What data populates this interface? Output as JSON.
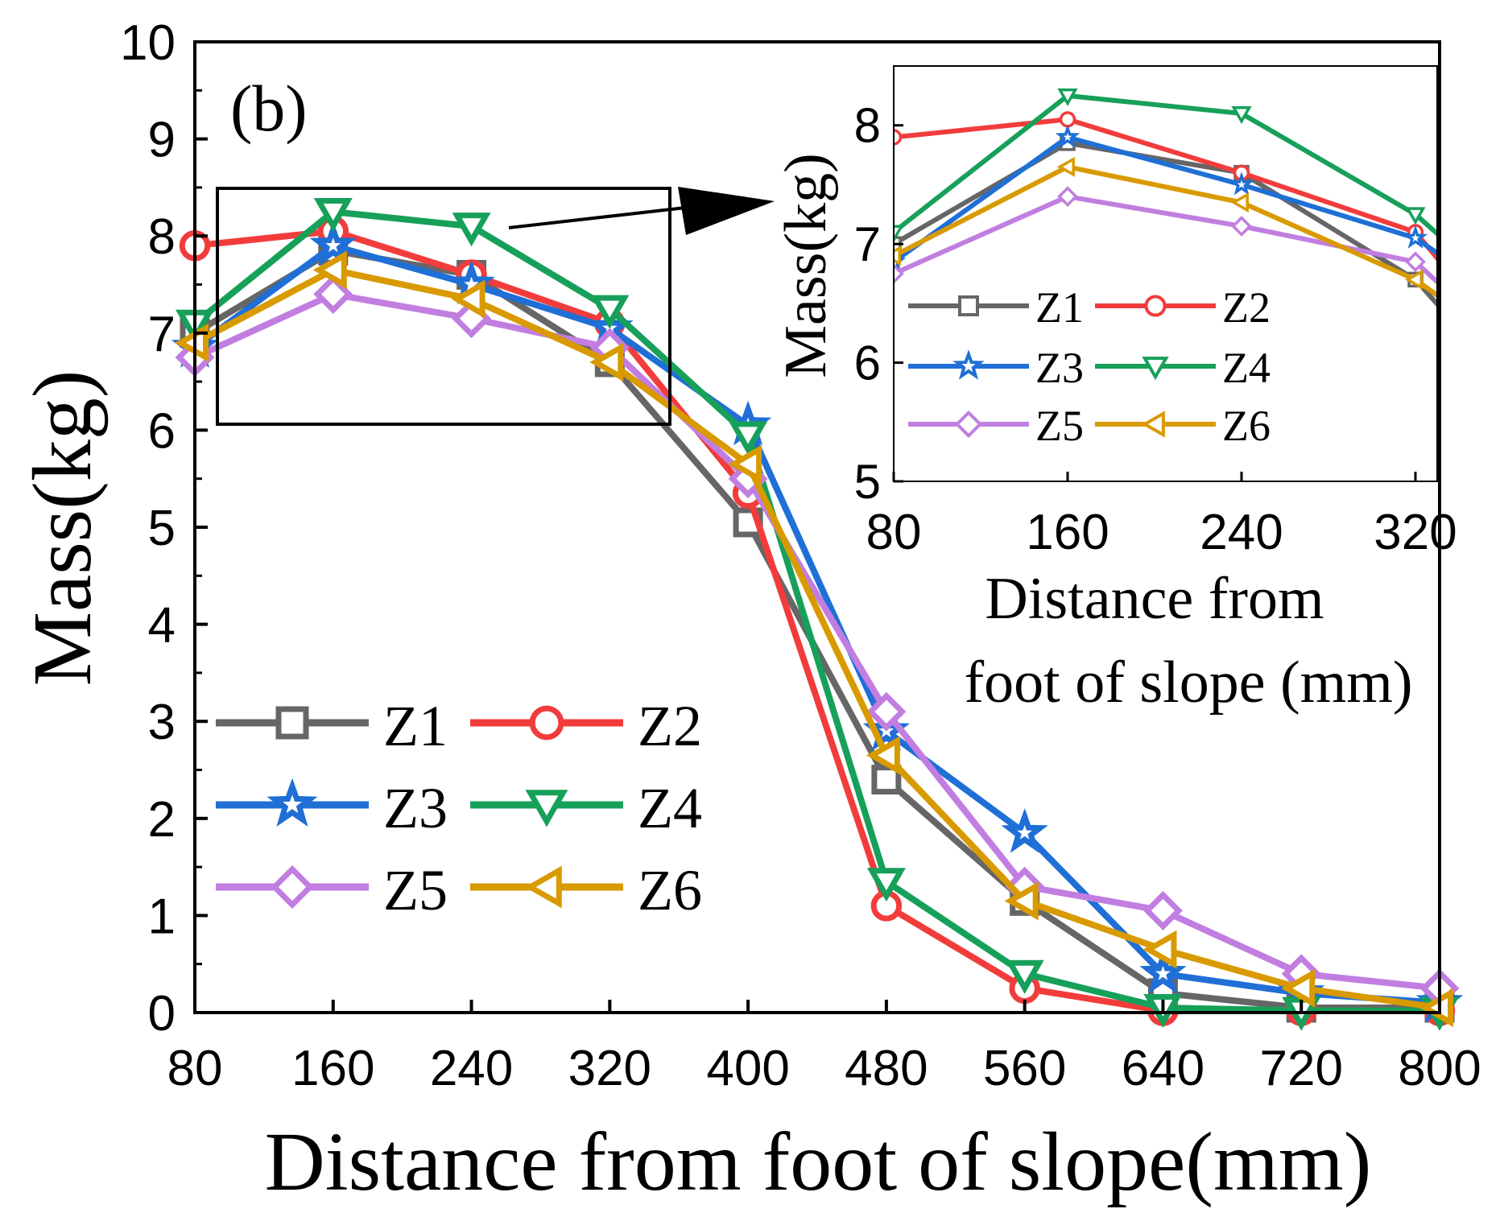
{
  "chart_data": [
    {
      "type": "line",
      "panel_label": "(b)",
      "xlabel": "Distance from foot of slope(mm)",
      "ylabel": "Mass(kg)",
      "xlim": [
        80,
        800
      ],
      "ylim": [
        0,
        10
      ],
      "xticks": [
        "80",
        "160",
        "240",
        "320",
        "400",
        "480",
        "560",
        "640",
        "720",
        "800"
      ],
      "yticks": [
        "0",
        "1",
        "2",
        "3",
        "4",
        "5",
        "6",
        "7",
        "8",
        "9",
        "10"
      ],
      "x": [
        80,
        160,
        240,
        320,
        400,
        480,
        560,
        640,
        720,
        800
      ],
      "legend_position": "center-left",
      "series": [
        {
          "name": "Z1",
          "marker": "square",
          "color": "#666666",
          "values": [
            7.0,
            7.85,
            7.6,
            6.7,
            5.05,
            2.4,
            1.15,
            0.2,
            0.05,
            0.05
          ]
        },
        {
          "name": "Z2",
          "marker": "circle",
          "color": "#f23c3c",
          "values": [
            7.9,
            8.05,
            7.6,
            7.1,
            5.35,
            1.1,
            0.25,
            0.02,
            0.02,
            0.02
          ]
        },
        {
          "name": "Z3",
          "marker": "star",
          "color": "#1f6fd6",
          "values": [
            6.85,
            7.9,
            7.5,
            7.05,
            6.05,
            2.9,
            1.85,
            0.4,
            0.2,
            0.1
          ]
        },
        {
          "name": "Z4",
          "marker": "triangle-down",
          "color": "#17a05a",
          "values": [
            7.1,
            8.25,
            8.1,
            7.25,
            5.95,
            1.35,
            0.4,
            0.05,
            0.02,
            0.02
          ]
        },
        {
          "name": "Z5",
          "marker": "diamond",
          "color": "#c17ee0",
          "values": [
            6.75,
            7.4,
            7.15,
            6.85,
            5.5,
            3.1,
            1.3,
            1.05,
            0.4,
            0.25
          ]
        },
        {
          "name": "Z6",
          "marker": "triangle-left",
          "color": "#d99a00",
          "values": [
            6.9,
            7.65,
            7.35,
            6.7,
            5.65,
            2.65,
            1.15,
            0.65,
            0.25,
            0.05
          ]
        }
      ]
    },
    {
      "type": "line",
      "role": "inset",
      "xlabel_line1": "Distance from",
      "xlabel_line2": "foot of slope (mm)",
      "ylabel": "Mass(kg)",
      "xlim": [
        80,
        330
      ],
      "ylim": [
        5,
        8.5
      ],
      "xticks": [
        "80",
        "160",
        "240",
        "320"
      ],
      "yticks": [
        "5",
        "6",
        "7",
        "8"
      ],
      "legend_position": "center-left"
    }
  ]
}
